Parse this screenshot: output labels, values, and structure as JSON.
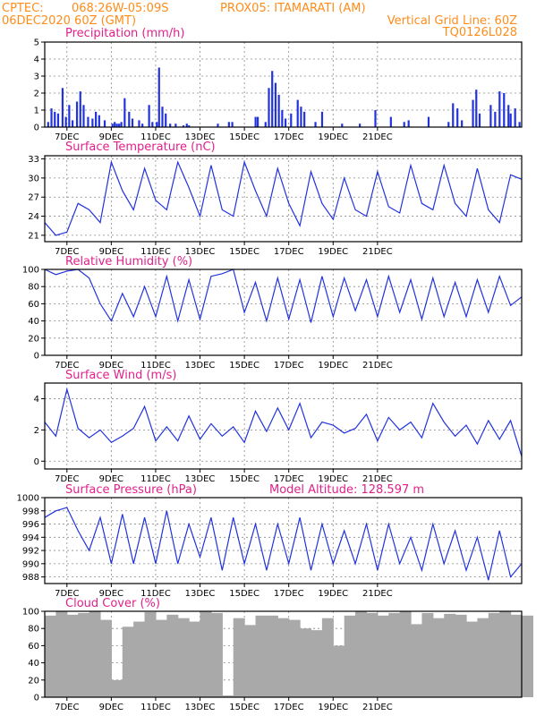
{
  "header": {
    "source": "CPTEC:",
    "coords": "068:26W-05:09S",
    "station": "PROX05: ITAMARATI (AM)",
    "run": "06DEC2020 60Z (GMT)",
    "grid_note": "Vertical Grid Line: 60Z",
    "model_code": "TQ0126L028"
  },
  "x_ticks": [
    "7DEC",
    "9DEC",
    "11DEC",
    "13DEC",
    "15DEC",
    "17DEC",
    "19DEC",
    "21DEC"
  ],
  "colors": {
    "line": "#2233dd",
    "bar": "#2233dd",
    "cloud": "#a9a9a9",
    "header": "#ff8c1a",
    "title": "#e0218a"
  },
  "panels": [
    {
      "key": "precip",
      "title": "Precipitation (mm/h)"
    },
    {
      "key": "temp",
      "title": "Surface Temperature (nC)"
    },
    {
      "key": "rh",
      "title": "Relative Humidity (%)"
    },
    {
      "key": "wind",
      "title": "Surface Wind (m/s)"
    },
    {
      "key": "press",
      "title": "Surface Pressure (hPa)",
      "note": "Model Altitude: 128.597 m"
    },
    {
      "key": "cloud",
      "title": "Cloud Cover (%)"
    }
  ],
  "chart_data": [
    {
      "type": "bar",
      "title": "Precipitation (mm/h)",
      "x_unit": "days since 6DEC 00Z",
      "ylim": [
        0,
        5
      ],
      "yticks": [
        0,
        1,
        2,
        3,
        4,
        5
      ],
      "x": [
        0.15,
        0.3,
        0.45,
        0.6,
        0.8,
        0.95,
        1.1,
        1.25,
        1.45,
        1.6,
        1.75,
        1.95,
        2.15,
        2.3,
        2.45,
        2.7,
        3.05,
        3.15,
        3.25,
        3.35,
        3.45,
        3.6,
        3.8,
        3.95,
        4.25,
        4.4,
        4.7,
        4.85,
        5.05,
        5.15,
        5.3,
        5.45,
        5.65,
        5.9,
        6.25,
        6.4,
        6.5,
        7.8,
        8.3,
        8.45,
        9.5,
        9.6,
        9.95,
        10.1,
        10.25,
        10.4,
        10.55,
        10.7,
        10.85,
        11.1,
        11.4,
        11.55,
        11.7,
        12.2,
        12.5,
        13.4,
        14.2,
        14.9,
        15.6,
        16.2,
        16.4,
        17.3,
        18.2,
        18.4,
        18.6,
        18.8,
        19.3,
        19.45,
        19.6,
        20.1,
        20.3,
        20.5,
        20.7,
        20.9,
        21.0,
        21.2,
        21.4
      ],
      "values": [
        0.3,
        1.1,
        0.9,
        0.8,
        2.3,
        0.6,
        1.3,
        0.4,
        1.5,
        2.1,
        1.3,
        0.6,
        0.5,
        0.9,
        0.7,
        0.4,
        0.2,
        0.3,
        0.2,
        0.2,
        0.3,
        1.7,
        0.9,
        0.5,
        0.4,
        0.2,
        1.3,
        0.3,
        0.3,
        3.5,
        1.2,
        0.8,
        0.2,
        0.2,
        0.1,
        0.2,
        0.1,
        0.2,
        0.3,
        0.3,
        0.6,
        0.6,
        0.3,
        2.3,
        3.3,
        2.6,
        1.9,
        1.0,
        0.5,
        0.8,
        1.6,
        1.2,
        0.9,
        0.3,
        0.9,
        0.2,
        0.2,
        1.0,
        0.6,
        0.3,
        0.4,
        0.6,
        0.3,
        1.4,
        1.1,
        0.4,
        1.6,
        2.2,
        0.8,
        1.3,
        0.9,
        2.1,
        2.0,
        1.3,
        0.8,
        1.1,
        0.3
      ]
    },
    {
      "type": "line",
      "title": "Surface Temperature (nC)",
      "x_unit": "days since 6DEC 00Z",
      "ylim": [
        20,
        33.5
      ],
      "yticks": [
        21,
        24,
        27,
        30,
        33
      ],
      "x": [
        0,
        0.5,
        1,
        1.5,
        2,
        2.5,
        3,
        3.5,
        4,
        4.5,
        5,
        5.5,
        6,
        6.5,
        7,
        7.5,
        8,
        8.5,
        9,
        9.5,
        10,
        10.5,
        11,
        11.5,
        12,
        12.5,
        13,
        13.5,
        14,
        14.5,
        15,
        15.5,
        16,
        16.5,
        17,
        17.5,
        18,
        18.5,
        19,
        19.5,
        20,
        20.5,
        21,
        21.5
      ],
      "values": [
        23,
        21,
        21.5,
        26,
        25,
        23,
        32.5,
        28,
        25,
        31.5,
        26.5,
        25,
        32.5,
        28.5,
        24,
        32,
        25,
        24,
        32.5,
        28,
        24,
        31.5,
        26,
        22.5,
        31,
        26,
        23.5,
        30,
        25,
        24,
        31,
        25.5,
        24.5,
        32,
        26,
        25,
        32,
        26,
        24,
        31.5,
        25,
        23,
        30.5,
        29.8
      ]
    },
    {
      "type": "line",
      "title": "Relative Humidity (%)",
      "x_unit": "days since 6DEC 00Z",
      "ylim": [
        0,
        100
      ],
      "yticks": [
        0,
        20,
        40,
        60,
        80,
        100
      ],
      "x": [
        0,
        0.5,
        1,
        1.5,
        2,
        2.5,
        3,
        3.5,
        4,
        4.5,
        5,
        5.5,
        6,
        6.5,
        7,
        7.5,
        8,
        8.5,
        9,
        9.5,
        10,
        10.5,
        11,
        11.5,
        12,
        12.5,
        13,
        13.5,
        14,
        14.5,
        15,
        15.5,
        16,
        16.5,
        17,
        17.5,
        18,
        18.5,
        19,
        19.5,
        20,
        20.5,
        21,
        21.5
      ],
      "values": [
        100,
        94,
        98,
        100,
        90,
        60,
        40,
        72,
        45,
        80,
        45,
        92,
        40,
        88,
        42,
        92,
        95,
        100,
        50,
        85,
        40,
        90,
        42,
        88,
        38,
        92,
        45,
        90,
        52,
        88,
        45,
        92,
        50,
        88,
        42,
        90,
        45,
        85,
        45,
        88,
        50,
        92,
        58,
        68
      ]
    },
    {
      "type": "line",
      "title": "Surface Wind (m/s)",
      "x_unit": "days since 6DEC 00Z",
      "ylim": [
        -0.5,
        5
      ],
      "yticks": [
        0,
        2,
        4
      ],
      "x": [
        0,
        0.5,
        1,
        1.5,
        2,
        2.5,
        3,
        3.5,
        4,
        4.5,
        5,
        5.5,
        6,
        6.5,
        7,
        7.5,
        8,
        8.5,
        9,
        9.5,
        10,
        10.5,
        11,
        11.5,
        12,
        12.5,
        13,
        13.5,
        14,
        14.5,
        15,
        15.5,
        16,
        16.5,
        17,
        17.5,
        18,
        18.5,
        19,
        19.5,
        20,
        20.5,
        21,
        21.5
      ],
      "values": [
        2.5,
        1.6,
        4.6,
        2.1,
        1.5,
        2.0,
        1.2,
        1.6,
        2.1,
        3.5,
        1.3,
        2.2,
        1.3,
        2.9,
        1.4,
        2.4,
        1.6,
        2.2,
        1.2,
        3.2,
        1.9,
        3.4,
        2.0,
        3.7,
        1.5,
        2.5,
        2.3,
        1.8,
        2.1,
        3.0,
        1.3,
        2.8,
        2.0,
        2.5,
        1.5,
        3.7,
        2.5,
        1.6,
        2.3,
        1.1,
        2.6,
        1.4,
        2.6,
        0.3
      ]
    },
    {
      "type": "line",
      "title": "Surface Pressure (hPa)",
      "x_unit": "days since 6DEC 00Z",
      "ylim": [
        987,
        1000
      ],
      "yticks": [
        988,
        990,
        992,
        994,
        996,
        998,
        1000
      ],
      "x": [
        0,
        0.5,
        1,
        1.5,
        2,
        2.5,
        3,
        3.5,
        4,
        4.5,
        5,
        5.5,
        6,
        6.5,
        7,
        7.5,
        8,
        8.5,
        9,
        9.5,
        10,
        10.5,
        11,
        11.5,
        12,
        12.5,
        13,
        13.5,
        14,
        14.5,
        15,
        15.5,
        16,
        16.5,
        17,
        17.5,
        18,
        18.5,
        19,
        19.5,
        20,
        20.5,
        21,
        21.5
      ],
      "values": [
        997,
        998,
        998.5,
        995,
        992,
        997,
        990,
        997.5,
        990,
        997,
        990,
        998,
        990,
        996,
        991,
        997,
        989,
        997,
        990,
        996,
        989,
        996,
        990,
        997,
        989,
        996,
        990,
        995,
        990,
        996,
        989,
        996,
        990,
        994,
        989,
        996,
        990,
        995,
        989,
        994,
        987.5,
        995,
        988,
        990
      ]
    },
    {
      "type": "bar",
      "title": "Cloud Cover (%)",
      "x_unit": "days since 6DEC 00Z",
      "ylim": [
        0,
        100
      ],
      "yticks": [
        0,
        20,
        40,
        60,
        80,
        100
      ],
      "x": [
        0,
        0.5,
        1,
        1.5,
        2,
        2.5,
        3,
        3.5,
        4,
        4.5,
        5,
        5.5,
        6,
        6.5,
        7,
        7.5,
        8,
        8.5,
        9,
        9.5,
        10,
        10.5,
        11,
        11.5,
        12,
        12.5,
        13,
        13.5,
        14,
        14.5,
        15,
        15.5,
        16,
        16.5,
        17,
        17.5,
        18,
        18.5,
        19,
        19.5,
        20,
        20.5,
        21,
        21.5
      ],
      "values": [
        95,
        100,
        96,
        98,
        100,
        90,
        20,
        82,
        88,
        99,
        90,
        96,
        92,
        88,
        100,
        98,
        2,
        92,
        84,
        95,
        95,
        92,
        90,
        80,
        78,
        92,
        60,
        95,
        100,
        98,
        95,
        98,
        100,
        85,
        98,
        92,
        97,
        96,
        88,
        92,
        98,
        100,
        96,
        95
      ]
    }
  ]
}
